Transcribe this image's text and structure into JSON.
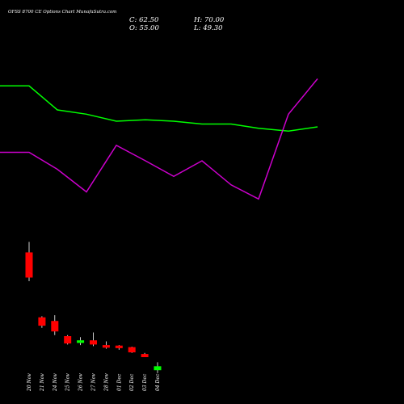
{
  "header": {
    "title": "OFSS 8700  CE Options  Chart MunafaSutra.com",
    "close": "C: 62.50",
    "high": "H: 70.00",
    "open": "O: 55.00",
    "low": "L: 49.30"
  },
  "colors": {
    "background": "#000000",
    "bearish": "#ff0000",
    "bullish": "#00ff00",
    "line_green": "#00ff00",
    "line_magenta": "#cc00cc"
  },
  "chart_data": {
    "type": "candlestick",
    "title": "OFSS 8700  CE Options  Chart MunafaSutra.com",
    "x_labels": [
      "20 Nov",
      "21 Nov",
      "24 Nov",
      "25 Nov",
      "26 Nov",
      "27 Nov",
      "28 Nov",
      "01 Dec",
      "02 Dec",
      "03 Dec",
      "04 Dec"
    ],
    "candles": [
      {
        "date": "20 Nov",
        "open": 280,
        "high": 300,
        "low": 225,
        "close": 232,
        "direction": "down"
      },
      {
        "date": "21 Nov",
        "open": 156,
        "high": 158,
        "low": 136,
        "close": 140,
        "direction": "down"
      },
      {
        "date": "24 Nov",
        "open": 149,
        "high": 160,
        "low": 122,
        "close": 129,
        "direction": "down"
      },
      {
        "date": "25 Nov",
        "open": 120,
        "high": 122,
        "low": 104,
        "close": 106,
        "direction": "down"
      },
      {
        "date": "26 Nov",
        "open": 107,
        "high": 118,
        "low": 103,
        "close": 112,
        "direction": "up"
      },
      {
        "date": "27 Nov",
        "open": 112,
        "high": 127,
        "low": 101,
        "close": 104,
        "direction": "down"
      },
      {
        "date": "28 Nov",
        "open": 103,
        "high": 110,
        "low": 96,
        "close": 98,
        "direction": "down"
      },
      {
        "date": "01 Dec",
        "open": 102,
        "high": 103,
        "low": 94,
        "close": 97,
        "direction": "down"
      },
      {
        "date": "02 Dec",
        "open": 99,
        "high": 100,
        "low": 88,
        "close": 89,
        "direction": "down"
      },
      {
        "date": "03 Dec",
        "open": 86,
        "high": 88,
        "low": 80,
        "close": 80,
        "direction": "down"
      },
      {
        "date": "04 Dec",
        "open": 55,
        "high": 70,
        "low": 49.3,
        "close": 62.5,
        "direction": "up"
      }
    ],
    "line_series": [
      {
        "color": "green",
        "values": [
          365,
          365,
          348,
          345,
          340,
          341,
          340,
          338,
          338,
          335,
          333,
          336
        ]
      },
      {
        "color": "magenta",
        "values": [
          318,
          318,
          306,
          290,
          323,
          312,
          301,
          312,
          295,
          285,
          345,
          370
        ]
      }
    ]
  }
}
